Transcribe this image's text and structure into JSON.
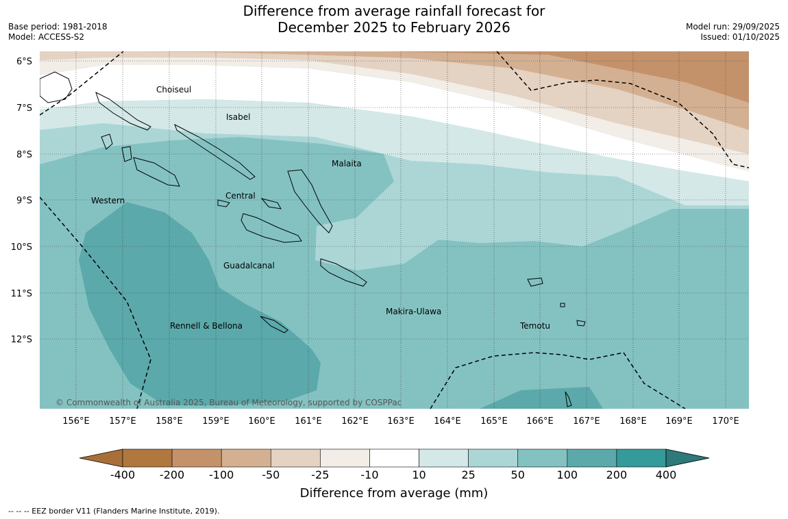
{
  "title": {
    "line1": "Difference from average rainfall forecast for",
    "line2": "December 2025 to February 2026"
  },
  "meta": {
    "base_period": "Base period: 1981-2018",
    "model": "Model: ACCESS-S2",
    "model_run": "Model run: 29/09/2025",
    "issued": "Issued: 01/10/2025"
  },
  "map": {
    "lat_labels": [
      "6°S",
      "7°S",
      "8°S",
      "9°S",
      "10°S",
      "11°S",
      "12°S"
    ],
    "lon_labels": [
      "156°E",
      "157°E",
      "158°E",
      "159°E",
      "160°E",
      "161°E",
      "162°E",
      "163°E",
      "164°E",
      "165°E",
      "166°E",
      "167°E",
      "168°E",
      "169°E",
      "170°E"
    ],
    "regions": {
      "choiseul": "Choiseul",
      "isabel": "Isabel",
      "malaita": "Malaita",
      "western": "Western",
      "central": "Central",
      "guadalcanal": "Guadalcanal",
      "makira": "Makira-Ulawa",
      "rennell": "Rennell & Bellona",
      "temotu": "Temotu"
    },
    "copyright": "© Commonwealth of Australia 2025, Bureau of Meteorology, supported by COSPPac"
  },
  "colorbar": {
    "ticks": [
      "-400",
      "-200",
      "-100",
      "-50",
      "-25",
      "-10",
      "10",
      "25",
      "50",
      "100",
      "200",
      "400"
    ],
    "colors": [
      "#a87038",
      "#b0773f",
      "#c4926a",
      "#d4b092",
      "#e4d2c2",
      "#f2ede6",
      "#ffffff",
      "#d4e8e8",
      "#acd6d6",
      "#84c2c2",
      "#5ba9ab",
      "#359a9a",
      "#2e7979"
    ],
    "label": "Difference from average (mm)"
  },
  "footer": "--  --  -- EEZ border V11 (Flanders Marine Institute, 2019)."
}
